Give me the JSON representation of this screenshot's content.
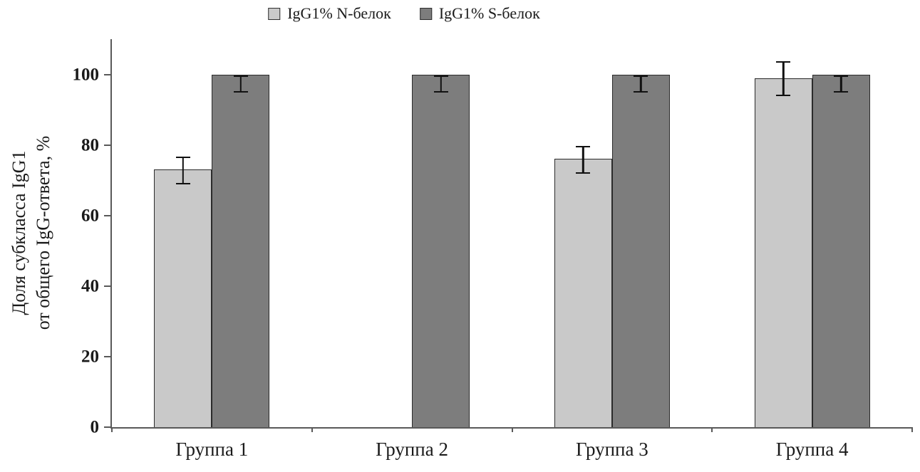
{
  "chart_data": {
    "type": "bar",
    "title": "",
    "categories": [
      "Группа 1",
      "Группа 2",
      "Группа 3",
      "Группа 4"
    ],
    "series": [
      {
        "name": "IgG1% N-белок",
        "color": "#c9c9c9",
        "values": [
          73,
          0,
          76,
          99
        ],
        "error_plus": [
          4,
          0,
          4,
          5
        ],
        "error_minus": [
          4,
          0,
          4,
          5
        ]
      },
      {
        "name": "IgG1% S-белок",
        "color": "#7d7d7d",
        "values": [
          100,
          100,
          100,
          100
        ],
        "error_plus": [
          0,
          0,
          0,
          0
        ],
        "error_minus": [
          5,
          5,
          5,
          5
        ]
      }
    ],
    "ylabel_line1": "Доля субкласса IgG1",
    "ylabel_line2": "от общего IgG-ответа, %",
    "xlabel": "",
    "yticks": [
      0,
      20,
      40,
      60,
      80,
      100
    ],
    "ylim": [
      0,
      110
    ],
    "grid": false,
    "legend_position": "top"
  }
}
